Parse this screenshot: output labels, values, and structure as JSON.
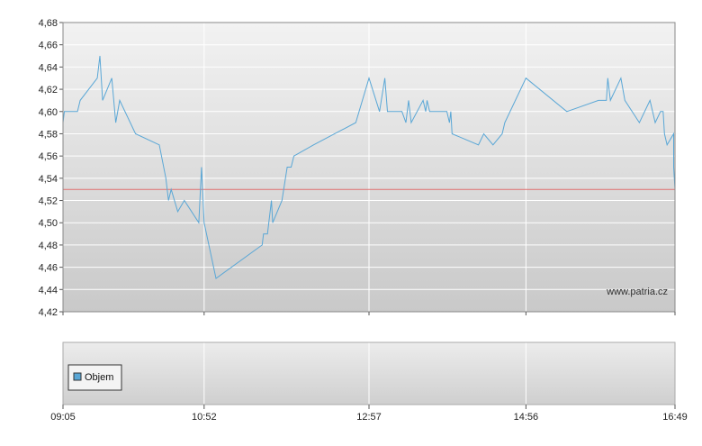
{
  "chart_data": [
    {
      "type": "line",
      "title": "",
      "xlabel": "",
      "ylabel": "",
      "ylim": [
        4.42,
        4.68
      ],
      "yticks": [
        "4,42",
        "4,44",
        "4,46",
        "4,48",
        "4,50",
        "4,52",
        "4,54",
        "4,56",
        "4,58",
        "4,60",
        "4,62",
        "4,64",
        "4,66",
        "4,68"
      ],
      "xlim": [
        "09:05",
        "16:49"
      ],
      "xticks": [
        "09:05",
        "10:52",
        "12:57",
        "14:56",
        "16:49"
      ],
      "grid": true,
      "watermark": "www.patria.cz",
      "colors": {
        "line": "#5aa7d6",
        "reference": "#e07070",
        "grid": "#ffffff"
      },
      "reference_line": {
        "y": 4.53
      },
      "series": [
        {
          "points": [
            [
              "09:05",
              4.59
            ],
            [
              "09:06",
              4.6
            ],
            [
              "09:16",
              4.6
            ],
            [
              "09:18",
              4.61
            ],
            [
              "09:31",
              4.63
            ],
            [
              "09:33",
              4.65
            ],
            [
              "09:35",
              4.61
            ],
            [
              "09:42",
              4.63
            ],
            [
              "09:45",
              4.59
            ],
            [
              "09:48",
              4.61
            ],
            [
              "10:00",
              4.58
            ],
            [
              "10:18",
              4.57
            ],
            [
              "10:23",
              4.54
            ],
            [
              "10:25",
              4.52
            ],
            [
              "10:27",
              4.53
            ],
            [
              "10:32",
              4.51
            ],
            [
              "10:37",
              4.52
            ],
            [
              "10:48",
              4.5
            ],
            [
              "10:50",
              4.55
            ],
            [
              "10:52",
              4.5
            ],
            [
              "11:01",
              4.45
            ],
            [
              "11:36",
              4.48
            ],
            [
              "11:37",
              4.49
            ],
            [
              "11:40",
              4.49
            ],
            [
              "11:43",
              4.52
            ],
            [
              "11:44",
              4.5
            ],
            [
              "11:51",
              4.52
            ],
            [
              "11:55",
              4.55
            ],
            [
              "11:58",
              4.55
            ],
            [
              "12:00",
              4.56
            ],
            [
              "12:15",
              4.57
            ],
            [
              "12:47",
              4.59
            ],
            [
              "12:57",
              4.63
            ],
            [
              "13:05",
              4.6
            ],
            [
              "13:09",
              4.63
            ],
            [
              "13:11",
              4.6
            ],
            [
              "13:22",
              4.6
            ],
            [
              "13:25",
              4.59
            ],
            [
              "13:27",
              4.61
            ],
            [
              "13:29",
              4.59
            ],
            [
              "13:38",
              4.61
            ],
            [
              "13:40",
              4.6
            ],
            [
              "13:41",
              4.61
            ],
            [
              "13:43",
              4.6
            ],
            [
              "13:56",
              4.6
            ],
            [
              "13:58",
              4.59
            ],
            [
              "13:59",
              4.6
            ],
            [
              "14:00",
              4.58
            ],
            [
              "14:20",
              4.57
            ],
            [
              "14:24",
              4.58
            ],
            [
              "14:31",
              4.57
            ],
            [
              "14:38",
              4.58
            ],
            [
              "14:40",
              4.59
            ],
            [
              "14:56",
              4.63
            ],
            [
              "15:27",
              4.6
            ],
            [
              "15:51",
              4.61
            ],
            [
              "15:57",
              4.61
            ],
            [
              "15:58",
              4.63
            ],
            [
              "16:00",
              4.61
            ],
            [
              "16:08",
              4.63
            ],
            [
              "16:11",
              4.61
            ],
            [
              "16:22",
              4.59
            ],
            [
              "16:30",
              4.61
            ],
            [
              "16:34",
              4.59
            ],
            [
              "16:38",
              4.6
            ],
            [
              "16:40",
              4.6
            ],
            [
              "16:41",
              4.58
            ],
            [
              "16:43",
              4.57
            ],
            [
              "16:48",
              4.58
            ],
            [
              "16:48",
              4.55
            ],
            [
              "16:49",
              4.53
            ],
            [
              "16:49",
              4.58
            ],
            [
              "16:49",
              4.57
            ]
          ]
        }
      ]
    },
    {
      "type": "bar",
      "title": "",
      "legend": [
        {
          "label": "Objem",
          "color": "#5aa7d6"
        }
      ],
      "legend_position": "left",
      "xticks": [
        "09:05",
        "10:52",
        "12:57",
        "14:56",
        "16:49"
      ],
      "series": [
        {
          "name": "Objem",
          "values": []
        }
      ]
    }
  ]
}
